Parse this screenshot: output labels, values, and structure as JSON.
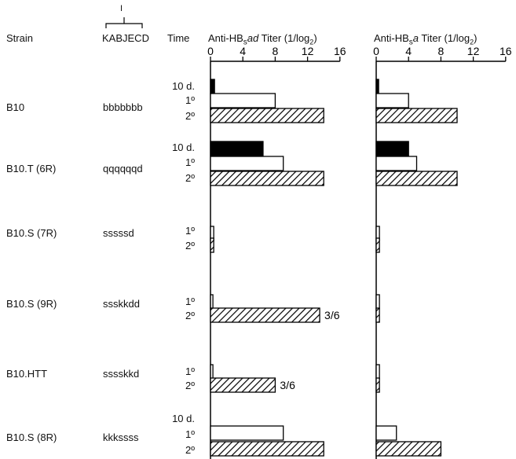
{
  "headers": {
    "strain": "Strain",
    "haplotype": "KABJECD",
    "haplotype_bracket_label": "I",
    "time": "Time",
    "panel1_prefix": "Anti-HB",
    "panel1_sub": "s",
    "panel1_italic": "ad",
    "panel1_suffix": " Titer (1/log",
    "panel1_unit_sub": "2",
    "panel1_close": ")",
    "panel2_prefix": "Anti-HB",
    "panel2_sub": "s",
    "panel2_italic": "a",
    "panel2_suffix": " Titer (1/log",
    "panel2_unit_sub": "2",
    "panel2_close": ")"
  },
  "rows": [
    {
      "strain": "B10",
      "haplotype": "bbbbbbb"
    },
    {
      "strain": "B10.T (6R)",
      "haplotype": "qqqqqqd"
    },
    {
      "strain": "B10.S (7R)",
      "haplotype": "sssssd"
    },
    {
      "strain": "B10.S (9R)",
      "haplotype": "ssskkdd"
    },
    {
      "strain": "B10.HTT",
      "haplotype": "sssskkd"
    },
    {
      "strain": "B10.S (8R)",
      "haplotype": "kkkssss"
    }
  ],
  "time_labels": {
    "d10": "10 d.",
    "primary": "1º",
    "secondary": "2º"
  },
  "colors": {
    "d10": "#000000",
    "primary": "#ffffff",
    "secondary": "hatched",
    "stroke": "#000000"
  },
  "chart_data": [
    {
      "type": "bar",
      "orientation": "horizontal",
      "title": "Anti-HBs/ad Titer (1/log2)",
      "xlim": [
        0,
        16
      ],
      "xticks": [
        0,
        4,
        8,
        12,
        16
      ],
      "groups": [
        {
          "strain": "B10",
          "bars": [
            {
              "time": "10 d.",
              "value": 0.5
            },
            {
              "time": "1º",
              "value": 8
            },
            {
              "time": "2º",
              "value": 14
            }
          ]
        },
        {
          "strain": "B10.T (6R)",
          "bars": [
            {
              "time": "10 d.",
              "value": 6.5
            },
            {
              "time": "1º",
              "value": 9
            },
            {
              "time": "2º",
              "value": 14
            }
          ]
        },
        {
          "strain": "B10.S (7R)",
          "bars": [
            {
              "time": "1º",
              "value": 0.4
            },
            {
              "time": "2º",
              "value": 0.4
            }
          ]
        },
        {
          "strain": "B10.S (9R)",
          "bars": [
            {
              "time": "1º",
              "value": 0.3
            },
            {
              "time": "2º",
              "value": 13.5,
              "annotation": "3/6"
            }
          ]
        },
        {
          "strain": "B10.HTT",
          "bars": [
            {
              "time": "1º",
              "value": 0.3
            },
            {
              "time": "2º",
              "value": 8,
              "annotation": "3/6"
            }
          ]
        },
        {
          "strain": "B10.S (8R)",
          "bars": [
            {
              "time": "10 d.",
              "value": 0.3
            },
            {
              "time": "1º",
              "value": 9
            },
            {
              "time": "2º",
              "value": 14
            }
          ]
        }
      ]
    },
    {
      "type": "bar",
      "orientation": "horizontal",
      "title": "Anti-HBs/a Titer (1/log2)",
      "xlim": [
        0,
        16
      ],
      "xticks": [
        0,
        4,
        8,
        12,
        16
      ],
      "groups": [
        {
          "strain": "B10",
          "bars": [
            {
              "time": "10 d.",
              "value": 0.3
            },
            {
              "time": "1º",
              "value": 4
            },
            {
              "time": "2º",
              "value": 10
            }
          ]
        },
        {
          "strain": "B10.T (6R)",
          "bars": [
            {
              "time": "10 d.",
              "value": 4
            },
            {
              "time": "1º",
              "value": 5
            },
            {
              "time": "2º",
              "value": 10
            }
          ]
        },
        {
          "strain": "B10.S (7R)",
          "bars": [
            {
              "time": "1º",
              "value": 0.4
            },
            {
              "time": "2º",
              "value": 0.4
            }
          ]
        },
        {
          "strain": "B10.S (9R)",
          "bars": [
            {
              "time": "1º",
              "value": 0.4
            },
            {
              "time": "2º",
              "value": 0.4
            }
          ]
        },
        {
          "strain": "B10.HTT",
          "bars": [
            {
              "time": "1º",
              "value": 0.4
            },
            {
              "time": "2º",
              "value": 0.4
            }
          ]
        },
        {
          "strain": "B10.S (8R)",
          "bars": [
            {
              "time": "10 d.",
              "value": 0.2
            },
            {
              "time": "1º",
              "value": 2.5
            },
            {
              "time": "2º",
              "value": 8
            }
          ]
        }
      ]
    }
  ]
}
